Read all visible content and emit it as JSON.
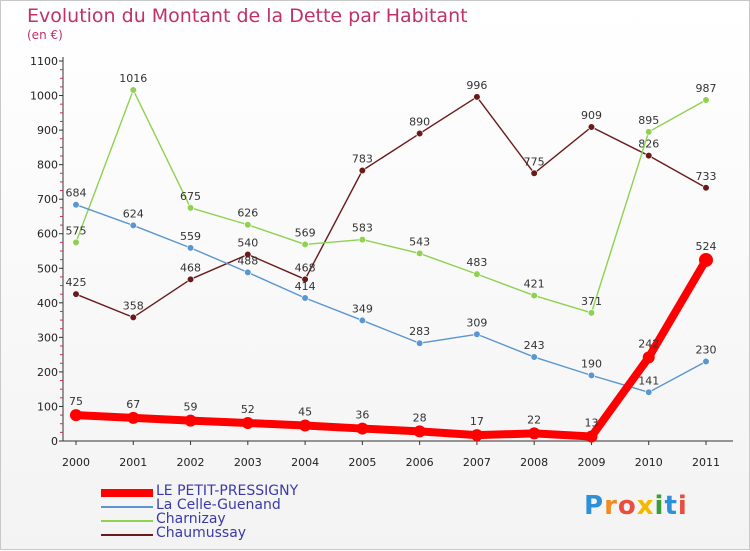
{
  "title": "Evolution du Montant de la Dette par Habitant",
  "subtitle": "(en €)",
  "logo": "Proxiti",
  "chart_data": {
    "type": "line",
    "title": "Evolution du Montant de la Dette par Habitant",
    "subtitle": "(en €)",
    "xlabel": "",
    "ylabel": "",
    "ylim": [
      0,
      1100
    ],
    "yticks": [
      "0",
      "100",
      "200",
      "300",
      "400",
      "500",
      "600",
      "700",
      "800",
      "900",
      "1000",
      "1100"
    ],
    "categories": [
      "2000",
      "2001",
      "2002",
      "2003",
      "2004",
      "2005",
      "2006",
      "2007",
      "2008",
      "2009",
      "2010",
      "2011"
    ],
    "legend_position": "bottom-left",
    "series": [
      {
        "name": "LE PETIT-PRESSIGNY",
        "color": "#ff0000",
        "values": [
          75,
          67,
          59,
          52,
          45,
          36,
          28,
          17,
          22,
          13,
          242,
          524
        ],
        "labels": [
          "75",
          "67",
          "59",
          "52",
          "45",
          "36",
          "28",
          "17",
          "22",
          "13",
          "242",
          "524"
        ]
      },
      {
        "name": "La Celle-Guenand",
        "color": "#5a96d2",
        "values": [
          684,
          624,
          559,
          488,
          414,
          349,
          283,
          309,
          243,
          190,
          141,
          230
        ],
        "labels": [
          "684",
          "624",
          "559",
          "488",
          "414",
          "349",
          "283",
          "309",
          "243",
          "190",
          "141",
          "230"
        ]
      },
      {
        "name": "Charnizay",
        "color": "#8fd150",
        "values": [
          575,
          1016,
          675,
          626,
          569,
          583,
          543,
          483,
          421,
          371,
          895,
          987
        ],
        "labels": [
          "575",
          "1016",
          "675",
          "626",
          "569",
          "583",
          "543",
          "483",
          "421",
          "371",
          "895",
          "987"
        ]
      },
      {
        "name": "Chaumussay",
        "color": "#6b1a1a",
        "values": [
          425,
          358,
          468,
          540,
          468,
          783,
          890,
          996,
          775,
          909,
          826,
          733
        ],
        "labels": [
          "425",
          "358",
          "468",
          "540",
          "468",
          "783",
          "890",
          "996",
          "775",
          "909",
          "826",
          "733"
        ]
      }
    ]
  }
}
